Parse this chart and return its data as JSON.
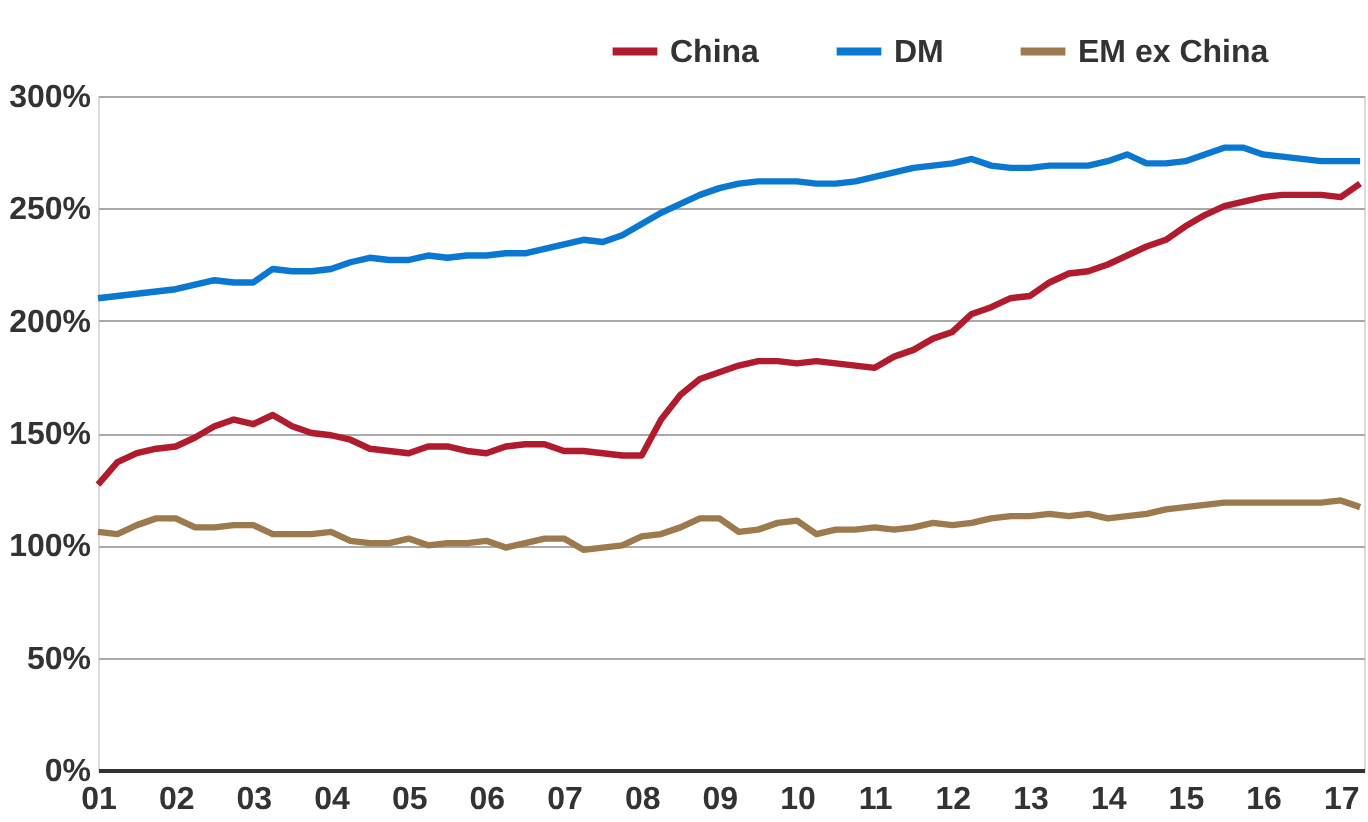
{
  "chart_data": {
    "type": "line",
    "x": [
      2001,
      2001.25,
      2001.5,
      2001.75,
      2002,
      2002.25,
      2002.5,
      2002.75,
      2003,
      2003.25,
      2003.5,
      2003.75,
      2004,
      2004.25,
      2004.5,
      2004.75,
      2005,
      2005.25,
      2005.5,
      2005.75,
      2006,
      2006.25,
      2006.5,
      2006.75,
      2007,
      2007.25,
      2007.5,
      2007.75,
      2008,
      2008.25,
      2008.5,
      2008.75,
      2009,
      2009.25,
      2009.5,
      2009.75,
      2010,
      2010.25,
      2010.5,
      2010.75,
      2011,
      2011.25,
      2011.5,
      2011.75,
      2012,
      2012.25,
      2012.5,
      2012.75,
      2013,
      2013.25,
      2013.5,
      2013.75,
      2014,
      2014.25,
      2014.5,
      2014.75,
      2015,
      2015.25,
      2015.5,
      2015.75,
      2016,
      2016.25,
      2016.5,
      2016.75,
      2017,
      2017.25
    ],
    "series": [
      {
        "name": "China",
        "color": "#b01c2e",
        "values": [
          127,
          137,
          141,
          143,
          144,
          148,
          153,
          156,
          154,
          158,
          153,
          150,
          149,
          147,
          143,
          142,
          141,
          144,
          144,
          142,
          141,
          144,
          145,
          145,
          142,
          142,
          141,
          140,
          140,
          156,
          167,
          174,
          177,
          180,
          182,
          182,
          181,
          182,
          181,
          180,
          179,
          184,
          187,
          192,
          195,
          203,
          206,
          210,
          211,
          217,
          221,
          222,
          225,
          229,
          233,
          236,
          242,
          247,
          251,
          253,
          255,
          256,
          256,
          256,
          255,
          261
        ]
      },
      {
        "name": "DM",
        "color": "#0a78d1",
        "values": [
          210,
          211,
          212,
          213,
          214,
          216,
          218,
          217,
          217,
          223,
          222,
          222,
          223,
          226,
          228,
          227,
          227,
          229,
          228,
          229,
          229,
          230,
          230,
          232,
          234,
          236,
          235,
          238,
          243,
          248,
          252,
          256,
          259,
          261,
          262,
          262,
          262,
          261,
          261,
          262,
          264,
          266,
          268,
          269,
          270,
          272,
          269,
          268,
          268,
          269,
          269,
          269,
          271,
          274,
          270,
          270,
          271,
          274,
          277,
          277,
          274,
          273,
          272,
          271,
          271,
          271
        ]
      },
      {
        "name": "EM ex China",
        "color": "#9c7a4d",
        "values": [
          106,
          105,
          109,
          112,
          112,
          108,
          108,
          109,
          109,
          105,
          105,
          105,
          106,
          102,
          101,
          101,
          103,
          100,
          101,
          101,
          102,
          99,
          101,
          103,
          103,
          98,
          99,
          100,
          104,
          105,
          108,
          112,
          112,
          106,
          107,
          110,
          111,
          105,
          107,
          107,
          108,
          107,
          108,
          110,
          109,
          110,
          112,
          113,
          113,
          114,
          113,
          114,
          112,
          113,
          114,
          116,
          117,
          118,
          119,
          119,
          119,
          119,
          119,
          119,
          120,
          117
        ]
      }
    ],
    "xlim": [
      2001,
      2017.3
    ],
    "xticks": [
      {
        "value": 2001,
        "label": "01"
      },
      {
        "value": 2002,
        "label": "02"
      },
      {
        "value": 2003,
        "label": "03"
      },
      {
        "value": 2004,
        "label": "04"
      },
      {
        "value": 2005,
        "label": "05"
      },
      {
        "value": 2006,
        "label": "06"
      },
      {
        "value": 2007,
        "label": "07"
      },
      {
        "value": 2008,
        "label": "08"
      },
      {
        "value": 2009,
        "label": "09"
      },
      {
        "value": 2010,
        "label": "10"
      },
      {
        "value": 2011,
        "label": "11"
      },
      {
        "value": 2012,
        "label": "12"
      },
      {
        "value": 2013,
        "label": "13"
      },
      {
        "value": 2014,
        "label": "14"
      },
      {
        "value": 2015,
        "label": "15"
      },
      {
        "value": 2016,
        "label": "16"
      },
      {
        "value": 2017,
        "label": "17"
      }
    ],
    "ylim": [
      0,
      300
    ],
    "yticks": [
      {
        "value": 0,
        "label": "0%"
      },
      {
        "value": 50,
        "label": "50%"
      },
      {
        "value": 100,
        "label": "100%"
      },
      {
        "value": 150,
        "label": "150%"
      },
      {
        "value": 200,
        "label": "200%"
      },
      {
        "value": 250,
        "label": "250%"
      },
      {
        "value": 300,
        "label": "300%"
      }
    ],
    "grid": "y",
    "legend": "top right",
    "line_style": "solid"
  }
}
